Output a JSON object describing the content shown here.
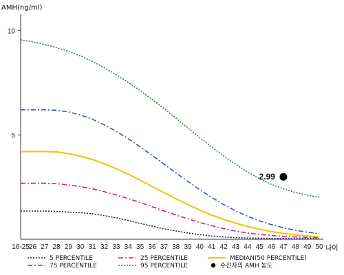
{
  "chart_data": {
    "type": "line",
    "ylabel": "AMH(ng/ml)",
    "xlabel": "나이",
    "yticks": [
      5,
      10
    ],
    "ylim": [
      0,
      10.8
    ],
    "x_categories": [
      "16-25",
      "26",
      "27",
      "28",
      "29",
      "30",
      "31",
      "32",
      "33",
      "34",
      "35",
      "36",
      "37",
      "38",
      "39",
      "40",
      "41",
      "42",
      "43",
      "44",
      "45",
      "46",
      "47",
      "48",
      "49",
      "50"
    ],
    "series": [
      {
        "name": "5 PERCENTILE",
        "color": "#1a1a5e",
        "dash": "2,2",
        "values": [
          1.35,
          1.35,
          1.35,
          1.33,
          1.3,
          1.27,
          1.22,
          1.13,
          1.03,
          0.9,
          0.76,
          0.63,
          0.5,
          0.4,
          0.3,
          0.22,
          0.15,
          0.11,
          0.08,
          0.06,
          0.05,
          0.04,
          0.04,
          0.03,
          0.03,
          0.03
        ]
      },
      {
        "name": "75 PERCENTILE",
        "color": "#3355bb",
        "dash": "7,3,2,3",
        "values": [
          6.2,
          6.2,
          6.2,
          6.18,
          6.1,
          5.95,
          5.75,
          5.48,
          5.17,
          4.82,
          4.43,
          4.02,
          3.6,
          3.18,
          2.77,
          2.37,
          2.0,
          1.66,
          1.36,
          1.1,
          0.88,
          0.7,
          0.55,
          0.43,
          0.34,
          0.27
        ]
      },
      {
        "name": "25 PERCENTILE",
        "color": "#e0148c",
        "dash": "7,3,2,3",
        "values": [
          2.68,
          2.68,
          2.68,
          2.66,
          2.6,
          2.52,
          2.42,
          2.28,
          2.12,
          1.95,
          1.76,
          1.56,
          1.36,
          1.16,
          0.98,
          0.8,
          0.65,
          0.51,
          0.39,
          0.3,
          0.23,
          0.18,
          0.14,
          0.11,
          0.09,
          0.08
        ]
      },
      {
        "name": "95 PERCENTILE",
        "color": "#2f7d3a",
        "dash": "2,2",
        "values": [
          9.55,
          9.45,
          9.33,
          9.18,
          9.0,
          8.78,
          8.52,
          8.22,
          7.88,
          7.52,
          7.12,
          6.7,
          6.26,
          5.8,
          5.33,
          4.87,
          4.42,
          3.99,
          3.59,
          3.22,
          2.9,
          2.63,
          2.41,
          2.24,
          2.11,
          2.01
        ]
      },
      {
        "name": "MEDIAN(50 PERCENTILE)",
        "color": "#f2c200",
        "dash": "",
        "values": [
          4.2,
          4.2,
          4.2,
          4.18,
          4.1,
          3.98,
          3.82,
          3.62,
          3.38,
          3.12,
          2.83,
          2.53,
          2.23,
          1.94,
          1.66,
          1.4,
          1.16,
          0.95,
          0.77,
          0.61,
          0.48,
          0.37,
          0.28,
          0.21,
          0.16,
          0.12
        ]
      }
    ],
    "point": {
      "name": "수진자의 AMH 농도",
      "x": "47",
      "y": 2.99,
      "label": "2.99",
      "color": "#000000"
    },
    "legend": [
      {
        "name": "5 PERCENTILE",
        "color": "#1a1a5e",
        "dash": "2,2",
        "marker": "line"
      },
      {
        "name": "25 PERCENTILE",
        "color": "#e0148c",
        "dash": "7,3,2,3",
        "marker": "line"
      },
      {
        "name": "MEDIAN(50 PERCENTILE)",
        "color": "#f2c200",
        "dash": "",
        "marker": "line"
      },
      {
        "name": "75 PERCENTILE",
        "color": "#3355bb",
        "dash": "7,3,2,3",
        "marker": "line"
      },
      {
        "name": "95 PERCENTILE",
        "color": "#2f7d3a",
        "dash": "2,2",
        "marker": "line"
      },
      {
        "name": "수진자의 AMH 농도",
        "color": "#000000",
        "dash": "",
        "marker": "dot"
      }
    ]
  }
}
